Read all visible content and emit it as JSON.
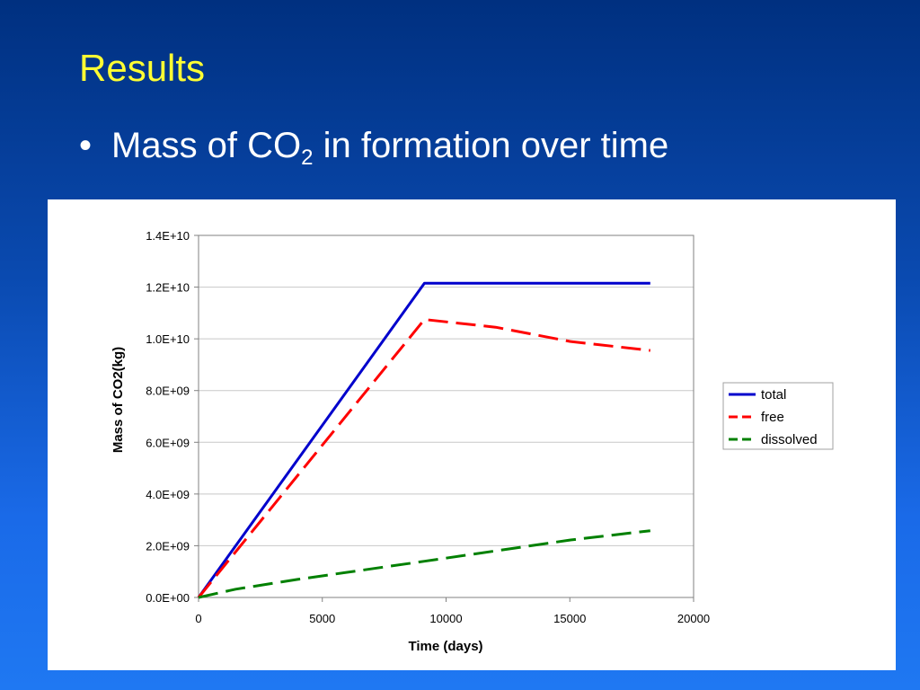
{
  "slide": {
    "title": "Results",
    "bullet": {
      "text_before": "Mass of CO",
      "subscript": "2",
      "text_after": " in formation over time"
    }
  },
  "colors": {
    "title": "#ffff33",
    "total": "#0000cc",
    "free": "#ff0000",
    "dissolved": "#008000"
  },
  "chart_data": {
    "type": "line",
    "title": "",
    "xlabel": "Time (days)",
    "ylabel": "Mass of CO2(kg)",
    "xlim": [
      0,
      20000
    ],
    "ylim": [
      0,
      14000000000
    ],
    "x_ticks": [
      0,
      5000,
      10000,
      15000,
      20000
    ],
    "x_tick_labels": [
      "0",
      "5000",
      "10000",
      "15000",
      "20000"
    ],
    "y_ticks": [
      0,
      2000000000,
      4000000000,
      6000000000,
      8000000000,
      10000000000,
      12000000000,
      14000000000
    ],
    "y_tick_labels": [
      "0.0E+00",
      "2.0E+09",
      "4.0E+09",
      "6.0E+09",
      "8.0E+09",
      "1.0E+10",
      "1.2E+10",
      "1.4E+10"
    ],
    "grid": "horizontal",
    "legend_position": "right",
    "series": [
      {
        "name": "total",
        "color": "#0000cc",
        "dashed": false,
        "points": [
          [
            0,
            0
          ],
          [
            9125,
            12150000000
          ],
          [
            18250,
            12150000000
          ]
        ]
      },
      {
        "name": "free",
        "color": "#ff0000",
        "dashed": true,
        "points": [
          [
            0,
            0
          ],
          [
            9125,
            10750000000
          ],
          [
            12000,
            10450000000
          ],
          [
            15000,
            9900000000
          ],
          [
            18250,
            9550000000
          ]
        ]
      },
      {
        "name": "dissolved",
        "color": "#008000",
        "dashed": true,
        "points": [
          [
            0,
            0
          ],
          [
            1500,
            320000000
          ],
          [
            4000,
            700000000
          ],
          [
            9125,
            1400000000
          ],
          [
            15000,
            2220000000
          ],
          [
            18250,
            2580000000
          ]
        ]
      }
    ]
  }
}
